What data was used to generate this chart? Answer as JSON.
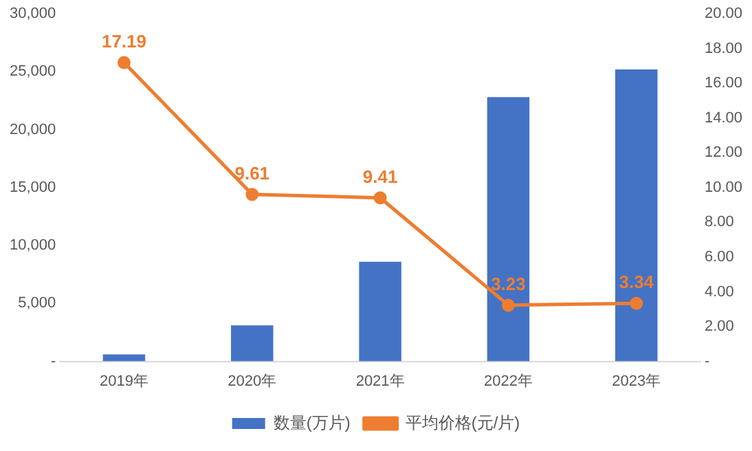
{
  "chart_data": {
    "type": "bar",
    "categories": [
      "2019年",
      "2020年",
      "2021年",
      "2022年",
      "2023年"
    ],
    "series": [
      {
        "name": "数量(万片)",
        "color": "#4472c4",
        "values": [
          600,
          3100,
          8600,
          22800,
          25200
        ]
      },
      {
        "name": "平均价格(元/片)",
        "type": "line",
        "axis": "y2",
        "color": "#ed7d31",
        "values": [
          17.19,
          9.61,
          9.41,
          3.23,
          3.34
        ],
        "value_labels": [
          "17.19",
          "9.61",
          "9.41",
          "3.23",
          "3.34"
        ]
      }
    ],
    "ylim": [
      0,
      30000
    ],
    "yticks": [
      {
        "value": 0,
        "label": "-"
      },
      {
        "value": 5000,
        "label": "5,000"
      },
      {
        "value": 10000,
        "label": "10,000"
      },
      {
        "value": 15000,
        "label": "15,000"
      },
      {
        "value": 20000,
        "label": "20,000"
      },
      {
        "value": 25000,
        "label": "25,000"
      },
      {
        "value": 30000,
        "label": "30,000"
      }
    ],
    "y2lim": [
      0,
      20
    ],
    "y2ticks": [
      {
        "value": 0,
        "label": "-"
      },
      {
        "value": 2,
        "label": "2.00"
      },
      {
        "value": 4,
        "label": "4.00"
      },
      {
        "value": 6,
        "label": "6.00"
      },
      {
        "value": 8,
        "label": "8.00"
      },
      {
        "value": 10,
        "label": "10.00"
      },
      {
        "value": 12,
        "label": "12.00"
      },
      {
        "value": 14,
        "label": "14.00"
      },
      {
        "value": 16,
        "label": "16.00"
      },
      {
        "value": 18,
        "label": "18.00"
      },
      {
        "value": 20,
        "label": "20.00"
      }
    ],
    "grid": false,
    "legend": "bottom",
    "marker": "circle",
    "line_style": "solid"
  }
}
